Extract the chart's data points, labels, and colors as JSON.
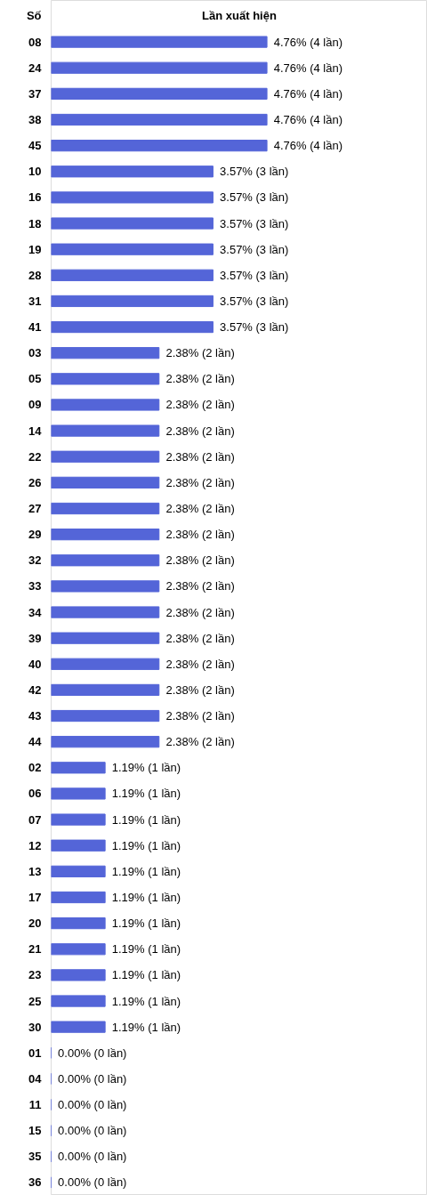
{
  "chart_data": {
    "type": "bar",
    "orientation": "horizontal",
    "ylabel": "Số",
    "xlabel": "Lần xuất hiện",
    "color": "#5465d8",
    "xlim": [
      0,
      8.3
    ],
    "tick_labels": "y",
    "grid": false,
    "categories": [
      "08",
      "24",
      "37",
      "38",
      "45",
      "10",
      "16",
      "18",
      "19",
      "28",
      "31",
      "41",
      "03",
      "05",
      "09",
      "14",
      "22",
      "26",
      "27",
      "29",
      "32",
      "33",
      "34",
      "39",
      "40",
      "42",
      "43",
      "44",
      "02",
      "06",
      "07",
      "12",
      "13",
      "17",
      "20",
      "21",
      "23",
      "25",
      "30",
      "01",
      "04",
      "11",
      "15",
      "35",
      "36"
    ],
    "values": [
      4.76,
      4.76,
      4.76,
      4.76,
      4.76,
      3.57,
      3.57,
      3.57,
      3.57,
      3.57,
      3.57,
      3.57,
      2.38,
      2.38,
      2.38,
      2.38,
      2.38,
      2.38,
      2.38,
      2.38,
      2.38,
      2.38,
      2.38,
      2.38,
      2.38,
      2.38,
      2.38,
      2.38,
      1.19,
      1.19,
      1.19,
      1.19,
      1.19,
      1.19,
      1.19,
      1.19,
      1.19,
      1.19,
      1.19,
      0,
      0,
      0,
      0,
      0,
      0
    ],
    "value_labels": [
      "4.76% (4 lần)",
      "4.76% (4 lần)",
      "4.76% (4 lần)",
      "4.76% (4 lần)",
      "4.76% (4 lần)",
      "3.57% (3 lần)",
      "3.57% (3 lần)",
      "3.57% (3 lần)",
      "3.57% (3 lần)",
      "3.57% (3 lần)",
      "3.57% (3 lần)",
      "3.57% (3 lần)",
      "2.38% (2 lần)",
      "2.38% (2 lần)",
      "2.38% (2 lần)",
      "2.38% (2 lần)",
      "2.38% (2 lần)",
      "2.38% (2 lần)",
      "2.38% (2 lần)",
      "2.38% (2 lần)",
      "2.38% (2 lần)",
      "2.38% (2 lần)",
      "2.38% (2 lần)",
      "2.38% (2 lần)",
      "2.38% (2 lần)",
      "2.38% (2 lần)",
      "2.38% (2 lần)",
      "2.38% (2 lần)",
      "1.19% (1 lần)",
      "1.19% (1 lần)",
      "1.19% (1 lần)",
      "1.19% (1 lần)",
      "1.19% (1 lần)",
      "1.19% (1 lần)",
      "1.19% (1 lần)",
      "1.19% (1 lần)",
      "1.19% (1 lần)",
      "1.19% (1 lần)",
      "1.19% (1 lần)",
      "0.00% (0 lần)",
      "0.00% (0 lần)",
      "0.00% (0 lần)",
      "0.00% (0 lần)",
      "0.00% (0 lần)",
      "0.00% (0 lần)"
    ]
  }
}
